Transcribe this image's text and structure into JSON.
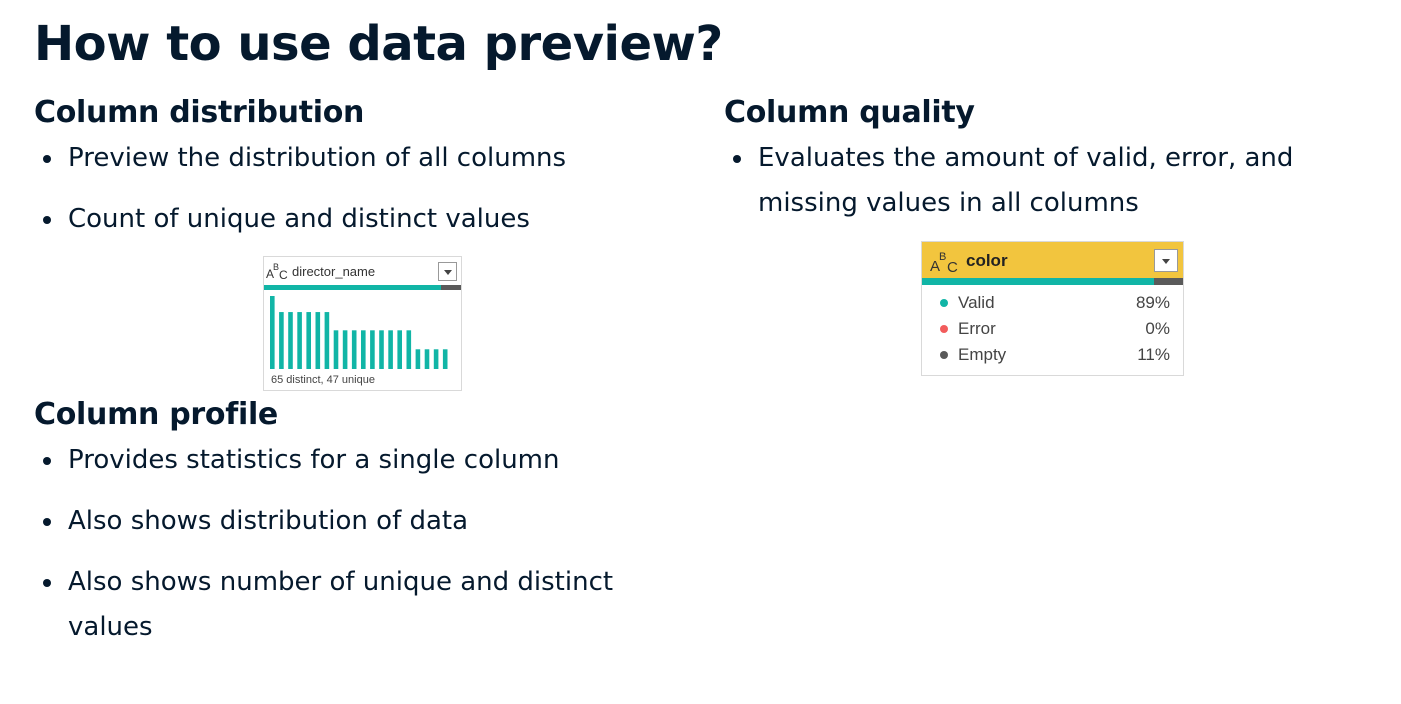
{
  "title": "How to use data preview?",
  "column_distribution": {
    "heading": "Column distribution",
    "bullets": [
      "Preview the distribution of all columns",
      "Count of unique and distinct values"
    ],
    "widget": {
      "icon": "abc-type-icon",
      "column_name": "director_name",
      "caption": "65 distinct, 47 unique",
      "valid_fraction": 0.9,
      "bar_heights": [
        1.0,
        0.78,
        0.78,
        0.78,
        0.78,
        0.78,
        0.78,
        0.53,
        0.53,
        0.53,
        0.53,
        0.53,
        0.53,
        0.53,
        0.53,
        0.53,
        0.27,
        0.27,
        0.27,
        0.27
      ],
      "bar_color": "#11b5a6"
    }
  },
  "column_quality": {
    "heading": "Column quality",
    "bullets": [
      "Evaluates the amount of valid, error, and missing values in all columns"
    ],
    "widget": {
      "icon": "abc-type-icon",
      "column_name": "color",
      "header_color": "#f2c53e",
      "rows": [
        {
          "label": "Valid",
          "value": "89%",
          "color": "#11b5a6"
        },
        {
          "label": "Error",
          "value": "0%",
          "color": "#f25c5c"
        },
        {
          "label": "Empty",
          "value": "11%",
          "color": "#5a5a5a"
        }
      ],
      "valid_fraction": 0.89
    }
  },
  "column_profile": {
    "heading": "Column profile",
    "bullets": [
      "Provides statistics for a single column",
      "Also shows distribution of data",
      "Also shows number of unique and distinct values"
    ]
  }
}
